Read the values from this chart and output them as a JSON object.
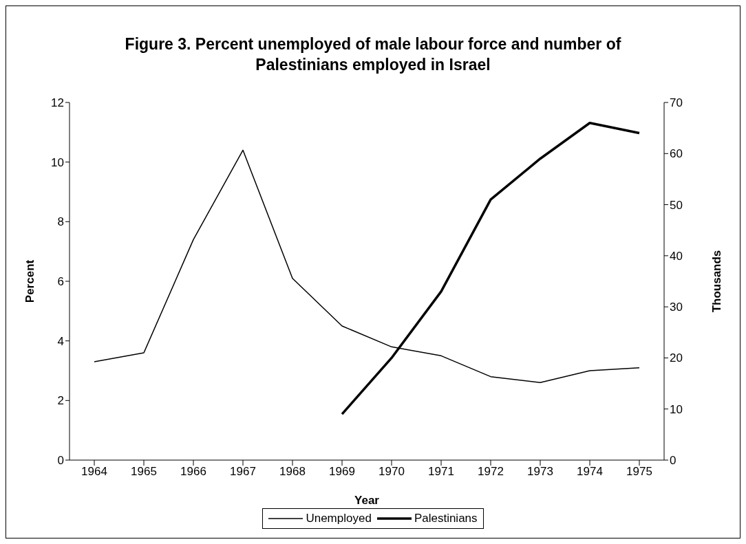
{
  "chart_data": {
    "type": "line",
    "title": "Figure 3. Percent unemployed of male labour force and number of Palestinians employed in Israel",
    "xlabel": "Year",
    "ylabel": "Percent",
    "y2label": "Thousands",
    "categories": [
      "1964",
      "1965",
      "1966",
      "1967",
      "1968",
      "1969",
      "1970",
      "1971",
      "1972",
      "1973",
      "1974",
      "1975"
    ],
    "series": [
      {
        "name": "Unemployed",
        "color": "#000000",
        "values": [
          3.3,
          3.6,
          7.4,
          10.4,
          6.1,
          4.5,
          3.8,
          3.5,
          2.8,
          2.6,
          3.0,
          3.1
        ]
      },
      {
        "name": "Palestinians",
        "color": "#000000",
        "axis": "y2",
        "values": [
          null,
          null,
          null,
          null,
          null,
          9,
          20,
          33,
          51,
          59,
          66,
          64
        ]
      }
    ],
    "ylim": [
      0,
      12
    ],
    "yticks": [
      0,
      2,
      4,
      6,
      8,
      10,
      12
    ],
    "y2lim": [
      0,
      70
    ],
    "y2ticks": [
      0,
      10,
      20,
      30,
      40,
      50,
      60,
      70
    ],
    "grid": false,
    "legend": "bottom",
    "marker": "none",
    "line_style": "solid"
  }
}
